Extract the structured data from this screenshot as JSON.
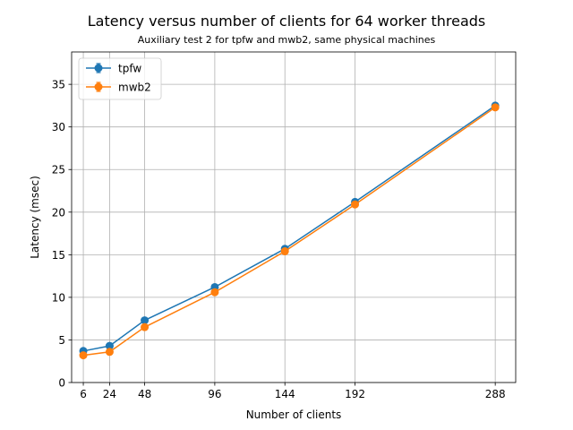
{
  "chart_data": {
    "type": "line",
    "title": "Latency versus number of clients for 64 worker threads",
    "subtitle": "Auxiliary test 2 for tpfw and mwb2, same physical machines",
    "xlabel": "Number of clients",
    "ylabel": "Latency (msec)",
    "x": [
      6,
      24,
      48,
      96,
      144,
      192,
      288
    ],
    "x_ticks": [
      6,
      24,
      48,
      96,
      144,
      192,
      288
    ],
    "y_ticks": [
      0,
      5,
      10,
      15,
      20,
      25,
      30,
      35
    ],
    "xlim": [
      -2,
      302
    ],
    "ylim": [
      0,
      38.8
    ],
    "grid": true,
    "legend_position": "top-left",
    "series": [
      {
        "name": "tpfw",
        "color": "#1f77b4",
        "values": [
          3.7,
          4.3,
          7.3,
          11.2,
          15.7,
          21.2,
          32.5
        ]
      },
      {
        "name": "mwb2",
        "color": "#ff7f0e",
        "values": [
          3.2,
          3.6,
          6.5,
          10.6,
          15.4,
          20.9,
          32.3
        ]
      }
    ]
  }
}
